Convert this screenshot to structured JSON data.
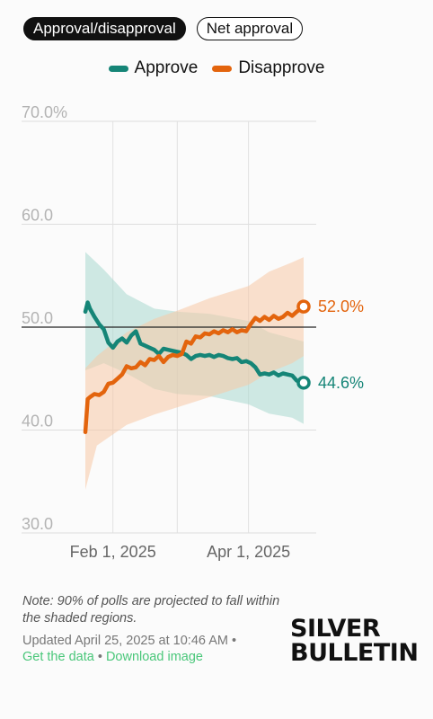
{
  "toggles": {
    "active": "Approval/disapproval",
    "inactive": "Net approval"
  },
  "colors": {
    "approve": "#158577",
    "disapprove": "#e3640d",
    "approve_band": "#a9d8d0",
    "disapprove_band": "#f8c9a6"
  },
  "chart_data": {
    "type": "line",
    "title": "",
    "xlabel": "",
    "ylabel": "",
    "x_domain": [
      "2025-01-20",
      "2025-04-25"
    ],
    "ylim": [
      30,
      70
    ],
    "y_ticks": [
      "30.0",
      "40.0",
      "50.0",
      "60.0",
      "70.0%"
    ],
    "y_tick_values": [
      30,
      40,
      50,
      60,
      70
    ],
    "x_ticks": [
      {
        "date": "2025-02-01",
        "label": "Feb 1, 2025"
      },
      {
        "date": "2025-04-01",
        "label": "Apr 1, 2025"
      }
    ],
    "x_gridlines": [
      "2025-02-01",
      "2025-03-01",
      "2025-04-01"
    ],
    "reference_line": 50,
    "grid": true,
    "legend_position": "top-center",
    "series": [
      {
        "name": "Approve",
        "color_key": "approve",
        "end_label": "44.6%",
        "points": [
          [
            "2025-01-20",
            51.5
          ],
          [
            "2025-01-21",
            52.4
          ],
          [
            "2025-01-22",
            51.8
          ],
          [
            "2025-01-24",
            51.0
          ],
          [
            "2025-01-26",
            50.3
          ],
          [
            "2025-01-28",
            49.8
          ],
          [
            "2025-01-30",
            48.5
          ],
          [
            "2025-02-01",
            48.0
          ],
          [
            "2025-02-03",
            48.6
          ],
          [
            "2025-02-05",
            48.9
          ],
          [
            "2025-02-07",
            48.5
          ],
          [
            "2025-02-09",
            49.2
          ],
          [
            "2025-02-11",
            49.6
          ],
          [
            "2025-02-13",
            48.4
          ],
          [
            "2025-02-15",
            48.2
          ],
          [
            "2025-02-17",
            48.0
          ],
          [
            "2025-02-19",
            47.8
          ],
          [
            "2025-02-21",
            47.4
          ],
          [
            "2025-02-23",
            47.9
          ],
          [
            "2025-02-25",
            47.8
          ],
          [
            "2025-02-27",
            47.7
          ],
          [
            "2025-03-01",
            47.6
          ],
          [
            "2025-03-03",
            47.5
          ],
          [
            "2025-03-05",
            47.3
          ],
          [
            "2025-03-07",
            46.9
          ],
          [
            "2025-03-09",
            47.2
          ],
          [
            "2025-03-11",
            47.3
          ],
          [
            "2025-03-13",
            47.2
          ],
          [
            "2025-03-15",
            47.3
          ],
          [
            "2025-03-17",
            47.1
          ],
          [
            "2025-03-19",
            47.3
          ],
          [
            "2025-03-21",
            47.2
          ],
          [
            "2025-03-23",
            47.0
          ],
          [
            "2025-03-25",
            46.9
          ],
          [
            "2025-03-27",
            47.0
          ],
          [
            "2025-03-29",
            46.6
          ],
          [
            "2025-03-31",
            46.7
          ],
          [
            "2025-04-02",
            46.5
          ],
          [
            "2025-04-04",
            46.1
          ],
          [
            "2025-04-06",
            45.4
          ],
          [
            "2025-04-08",
            45.5
          ],
          [
            "2025-04-10",
            45.4
          ],
          [
            "2025-04-12",
            45.6
          ],
          [
            "2025-04-14",
            45.3
          ],
          [
            "2025-04-16",
            45.5
          ],
          [
            "2025-04-18",
            45.4
          ],
          [
            "2025-04-20",
            45.3
          ],
          [
            "2025-04-22",
            44.8
          ],
          [
            "2025-04-25",
            44.6
          ]
        ],
        "band": [
          [
            "2025-01-20",
            45.8,
            57.3
          ],
          [
            "2025-01-28",
            46.5,
            55.6
          ],
          [
            "2025-02-07",
            45.5,
            53.2
          ],
          [
            "2025-02-19",
            44.0,
            51.8
          ],
          [
            "2025-03-01",
            43.5,
            51.5
          ],
          [
            "2025-03-15",
            43.3,
            51.3
          ],
          [
            "2025-04-01",
            42.5,
            50.6
          ],
          [
            "2025-04-10",
            41.6,
            49.5
          ],
          [
            "2025-04-20",
            41.2,
            48.9
          ],
          [
            "2025-04-25",
            40.6,
            48.6
          ]
        ]
      },
      {
        "name": "Disapprove",
        "color_key": "disapprove",
        "end_label": "52.0%",
        "points": [
          [
            "2025-01-20",
            39.8
          ],
          [
            "2025-01-21",
            43.0
          ],
          [
            "2025-01-22",
            43.2
          ],
          [
            "2025-01-24",
            43.5
          ],
          [
            "2025-01-26",
            43.4
          ],
          [
            "2025-01-28",
            43.7
          ],
          [
            "2025-01-30",
            44.5
          ],
          [
            "2025-02-01",
            44.6
          ],
          [
            "2025-02-03",
            45.0
          ],
          [
            "2025-02-05",
            45.4
          ],
          [
            "2025-02-07",
            46.2
          ],
          [
            "2025-02-09",
            46.0
          ],
          [
            "2025-02-11",
            46.1
          ],
          [
            "2025-02-13",
            46.6
          ],
          [
            "2025-02-15",
            46.3
          ],
          [
            "2025-02-17",
            46.9
          ],
          [
            "2025-02-19",
            46.8
          ],
          [
            "2025-02-21",
            47.2
          ],
          [
            "2025-02-23",
            46.6
          ],
          [
            "2025-02-25",
            47.1
          ],
          [
            "2025-02-27",
            47.3
          ],
          [
            "2025-03-01",
            47.2
          ],
          [
            "2025-03-03",
            47.4
          ],
          [
            "2025-03-05",
            48.6
          ],
          [
            "2025-03-07",
            48.4
          ],
          [
            "2025-03-09",
            49.1
          ],
          [
            "2025-03-11",
            49.0
          ],
          [
            "2025-03-13",
            49.4
          ],
          [
            "2025-03-15",
            49.3
          ],
          [
            "2025-03-17",
            49.6
          ],
          [
            "2025-03-19",
            49.4
          ],
          [
            "2025-03-21",
            49.7
          ],
          [
            "2025-03-23",
            49.5
          ],
          [
            "2025-03-25",
            49.8
          ],
          [
            "2025-03-27",
            49.5
          ],
          [
            "2025-03-29",
            49.7
          ],
          [
            "2025-03-31",
            49.6
          ],
          [
            "2025-04-02",
            50.3
          ],
          [
            "2025-04-04",
            50.9
          ],
          [
            "2025-04-06",
            50.6
          ],
          [
            "2025-04-08",
            51.0
          ],
          [
            "2025-04-10",
            50.7
          ],
          [
            "2025-04-12",
            51.1
          ],
          [
            "2025-04-14",
            50.8
          ],
          [
            "2025-04-16",
            51.0
          ],
          [
            "2025-04-18",
            51.4
          ],
          [
            "2025-04-20",
            51.1
          ],
          [
            "2025-04-22",
            51.5
          ],
          [
            "2025-04-25",
            52.0
          ]
        ],
        "band": [
          [
            "2025-01-20",
            34.2,
            46.0
          ],
          [
            "2025-01-25",
            38.5,
            47.2
          ],
          [
            "2025-02-07",
            40.5,
            49.5
          ],
          [
            "2025-02-19",
            41.5,
            50.8
          ],
          [
            "2025-03-01",
            42.2,
            51.6
          ],
          [
            "2025-03-15",
            43.2,
            52.8
          ],
          [
            "2025-04-01",
            44.4,
            54.0
          ],
          [
            "2025-04-10",
            45.6,
            55.4
          ],
          [
            "2025-04-20",
            46.5,
            56.3
          ],
          [
            "2025-04-25",
            47.2,
            56.8
          ]
        ]
      }
    ]
  },
  "footer": {
    "note": "Note: 90% of polls are projected to fall within the shaded regions.",
    "updated": "Updated April 25, 2025 at 10:46 AM •",
    "get_data": "Get the data",
    "separator": " • ",
    "download": "Download image",
    "brand_line1": "SILVER",
    "brand_line2": "BULLETIN"
  }
}
